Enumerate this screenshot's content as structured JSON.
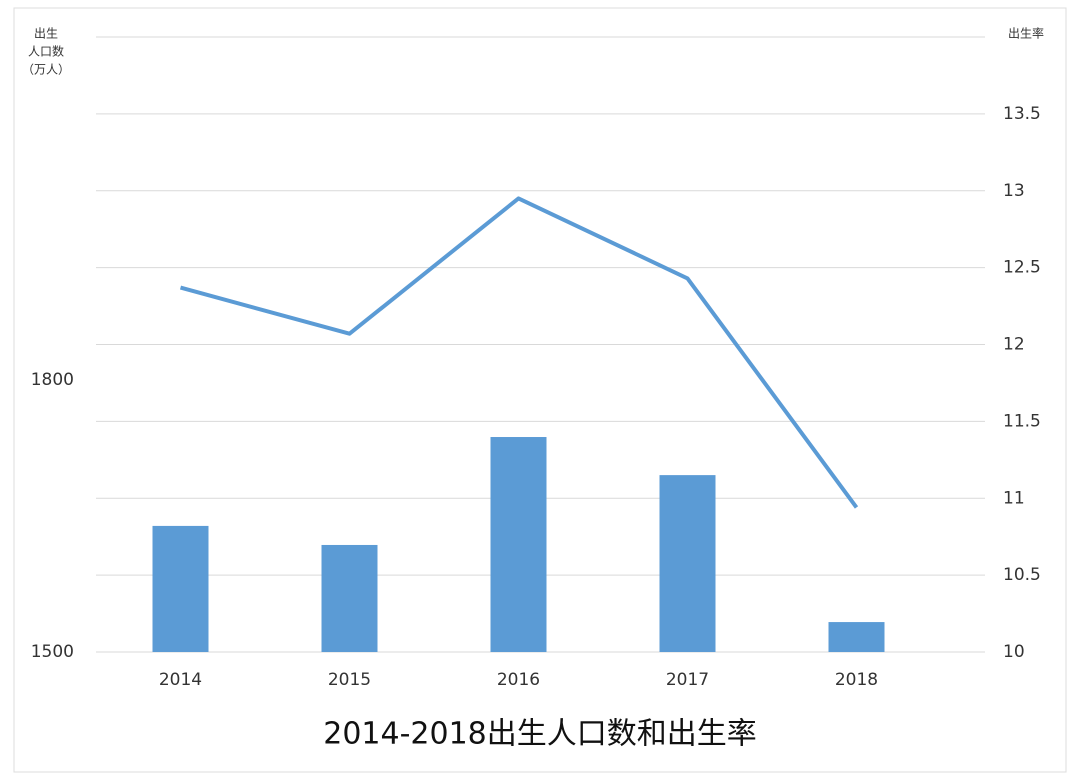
{
  "chart_data": {
    "type": "bar-line",
    "title": "2014-2018出生人口数和出生率",
    "y_label": [
      "出生",
      "人口数",
      "（万人）"
    ],
    "y2_label": "出生率",
    "categories": [
      "2014",
      "2015",
      "2016",
      "2017",
      "2018"
    ],
    "series": [
      {
        "name": "出生人口数",
        "type": "bar",
        "color": "#5b9bd5",
        "values": [
          1639,
          1618,
          1737,
          1695,
          1533
        ]
      },
      {
        "name": "出生率",
        "type": "line",
        "axis": "y2",
        "color": "#5b9bd5",
        "values": [
          12.37,
          12.07,
          12.95,
          12.43,
          10.94
        ]
      }
    ],
    "ylim": [
      1500,
      2178
    ],
    "yticks": [
      1500,
      1800
    ],
    "y2lim": [
      10,
      14
    ],
    "y2ticks": [
      10,
      10.5,
      11,
      11.5,
      12,
      12.5,
      13,
      13.5
    ],
    "grid": true
  }
}
